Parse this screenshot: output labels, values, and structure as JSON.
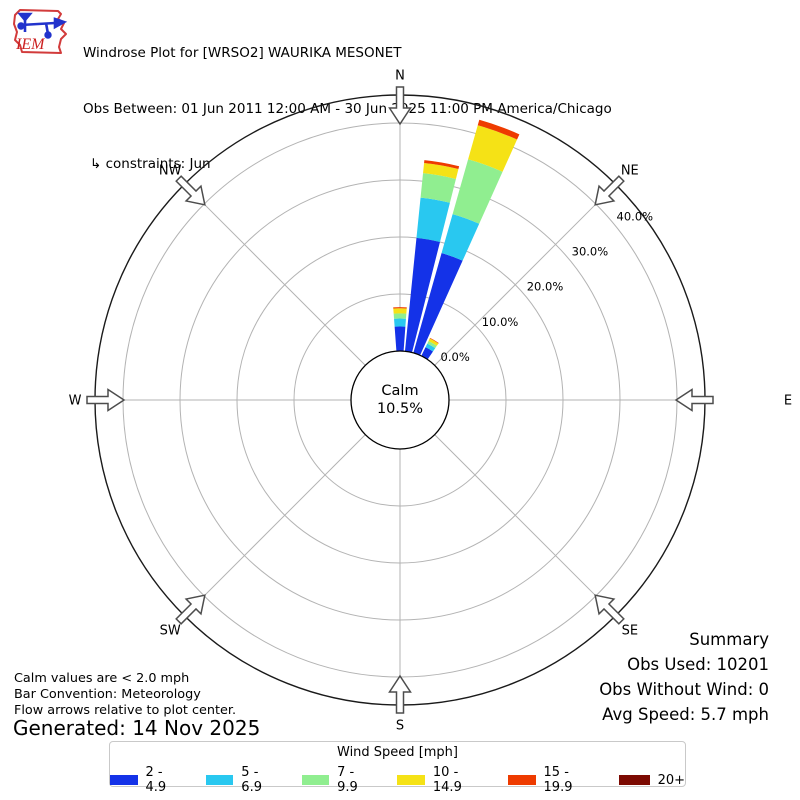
{
  "header": {
    "logo_text": "IEM",
    "title": "Windrose Plot for [WRSO2] WAURIKA MESONET",
    "obs_between": "Obs Between: 01 Jun 2011 12:00 AM - 30 Jun 2025 11:00 PM America/Chicago",
    "constraints": "↳ constraints: Jun"
  },
  "chart_data": {
    "type": "windrose",
    "title": "Windrose Plot for [WRSO2] WAURIKA MESONET",
    "units": "mph",
    "bar_convention": "Meteorology",
    "calm": {
      "label": "Calm",
      "value_label": "10.5%",
      "value_pct": 10.5,
      "threshold": "< 2.0 mph"
    },
    "compass_labels": [
      "N",
      "NE",
      "E",
      "SE",
      "S",
      "SW",
      "W",
      "NW"
    ],
    "radial_ticks": [
      {
        "pct": 0,
        "label": "0.0%"
      },
      {
        "pct": 10,
        "label": "10.0%"
      },
      {
        "pct": 20,
        "label": "20.0%"
      },
      {
        "pct": 30,
        "label": "30.0%"
      },
      {
        "pct": 40,
        "label": "40.0%"
      }
    ],
    "r_axis_max_pct": 45,
    "speed_bins": [
      {
        "label": "2 - 4.9",
        "color": "#1432e8"
      },
      {
        "label": "5 - 6.9",
        "color": "#29c8f0"
      },
      {
        "label": "7 - 9.9",
        "color": "#90ee90"
      },
      {
        "label": "10 - 14.9",
        "color": "#f5e216"
      },
      {
        "label": "15 - 19.9",
        "color": "#ee3b00"
      },
      {
        "label": "20+",
        "color": "#7c0a02"
      }
    ],
    "bar_width_deg": 8.4,
    "bars": [
      {
        "direction_deg": 0,
        "frequencies_pct": [
          4.3,
          1.4,
          0.9,
          0.9,
          0.2,
          0
        ]
      },
      {
        "direction_deg": 10,
        "frequencies_pct": [
          20.0,
          7.1,
          4.3,
          1.8,
          0.5,
          0
        ]
      },
      {
        "direction_deg": 20,
        "frequencies_pct": [
          18.2,
          7.1,
          10.0,
          6.2,
          1.0,
          0
        ]
      },
      {
        "direction_deg": 30,
        "frequencies_pct": [
          1.7,
          0.7,
          0.5,
          0.5,
          0.1,
          0
        ]
      }
    ]
  },
  "notes": [
    "Calm values are < 2.0 mph",
    "Bar Convention: Meteorology",
    "Flow arrows relative to plot center."
  ],
  "generated": "Generated: 14 Nov 2025",
  "summary": {
    "title": "Summary",
    "obs_used": "Obs Used: 10201",
    "obs_without_wind": "Obs Without Wind: 0",
    "avg_speed": "Avg Speed: 5.7 mph"
  },
  "legend": {
    "title": "Wind Speed [mph]"
  }
}
